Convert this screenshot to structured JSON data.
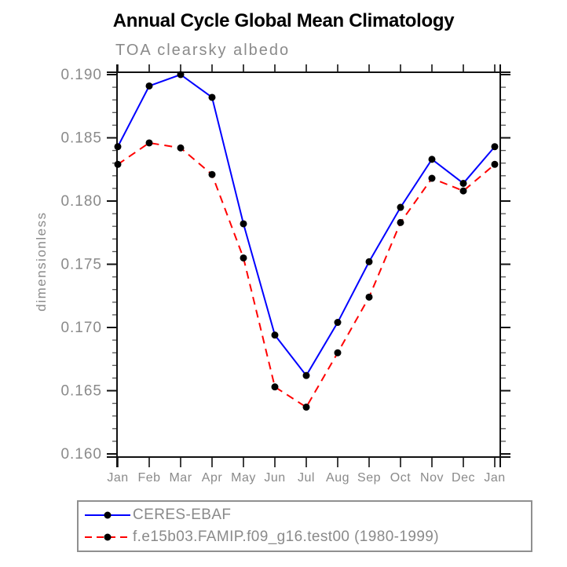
{
  "chart_data": {
    "type": "line",
    "title": "Annual Cycle Global Mean Climatology",
    "subtitle": "TOA clearsky albedo",
    "ylabel": "dimensionless",
    "xlabel": "",
    "x_labels": [
      "Jan",
      "Feb",
      "Mar",
      "Apr",
      "May",
      "Jun",
      "Jul",
      "Aug",
      "Sep",
      "Oct",
      "Nov",
      "Dec",
      "Jan"
    ],
    "ylim": [
      0.1598,
      0.1902
    ],
    "y_major_ticks": [
      0.16,
      0.165,
      0.17,
      0.175,
      0.18,
      0.185,
      0.19
    ],
    "y_major_tick_labels": [
      "0.160",
      "0.165",
      "0.170",
      "0.175",
      "0.180",
      "0.185",
      "0.190"
    ],
    "y_minor_step": 0.001,
    "grid": false,
    "legend_position": "bottom-box",
    "series": [
      {
        "name": "CERES-EBAF",
        "color": "#0000ff",
        "style": "solid",
        "marker": "circle",
        "marker_color": "#000000",
        "values": [
          0.1843,
          0.1891,
          0.19,
          0.1882,
          0.1782,
          0.1694,
          0.1662,
          0.1704,
          0.1752,
          0.1795,
          0.1833,
          0.1814,
          0.1843
        ]
      },
      {
        "name": "f.e15b03.FAMIP.f09_g16.test00 (1980-1999)",
        "color": "#ff0000",
        "style": "dashed",
        "marker": "circle",
        "marker_color": "#000000",
        "values": [
          0.1829,
          0.1846,
          0.1842,
          0.1821,
          0.1755,
          0.1653,
          0.1637,
          0.168,
          0.1724,
          0.1783,
          0.1818,
          0.1808,
          0.1829
        ]
      }
    ]
  },
  "colors": {
    "axis": "#111111",
    "minor_tick": "#555555",
    "tick_label": "#8a8a8a",
    "legend_border": "#909090",
    "title": "#000000"
  }
}
